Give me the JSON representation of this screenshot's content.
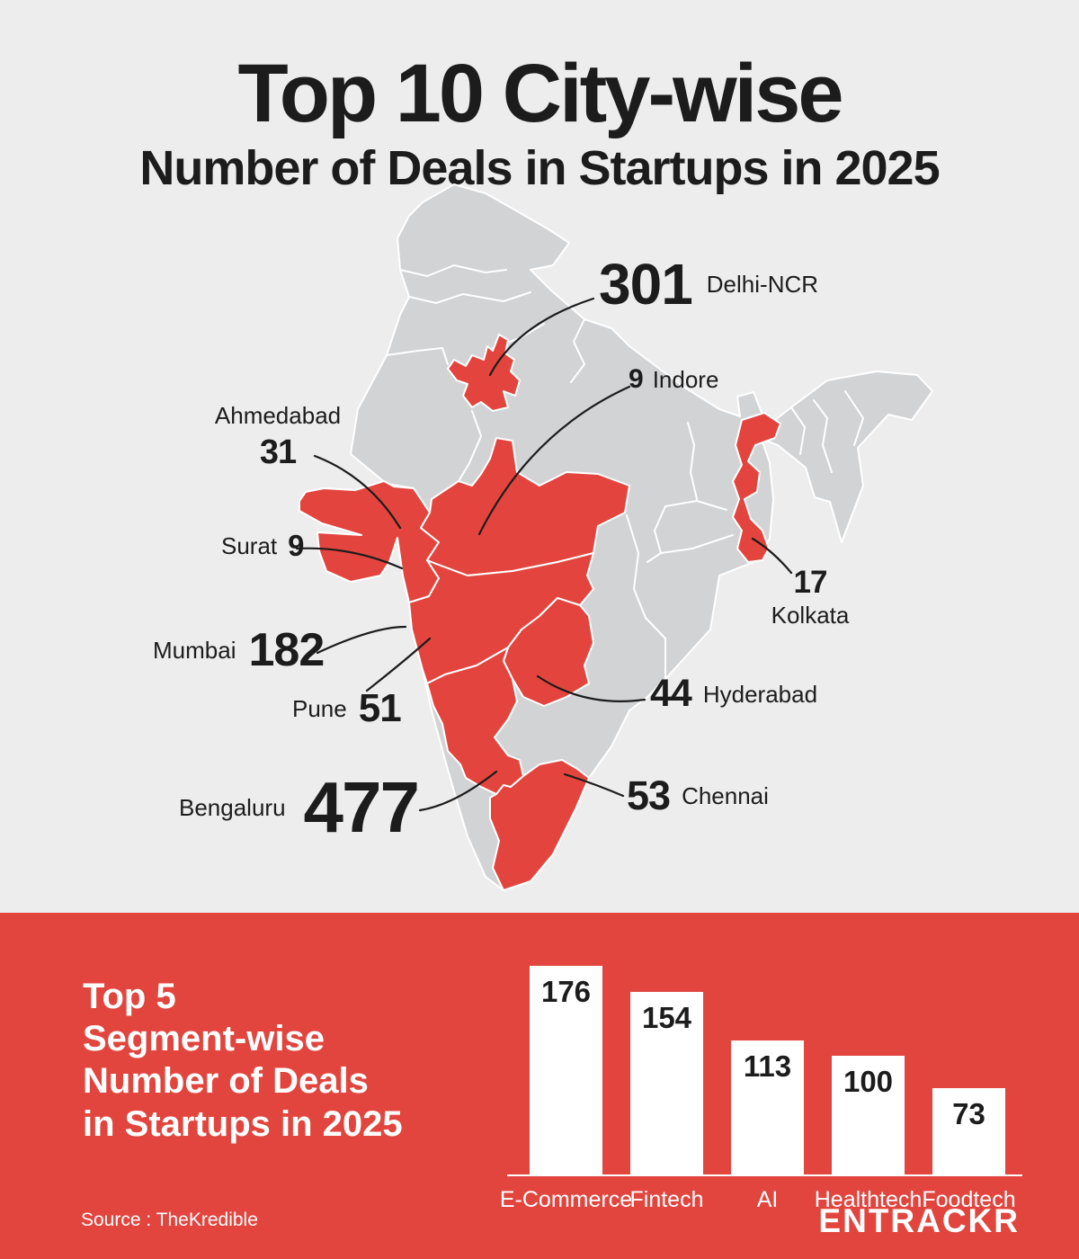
{
  "title": {
    "line1": "Top 10 City-wise",
    "line2": "Number of Deals in Startups in 2025"
  },
  "map": {
    "callouts": {
      "delhi": {
        "value": "301",
        "label": "Delhi-NCR"
      },
      "indore": {
        "value": "9",
        "label": "Indore"
      },
      "ahmedabad": {
        "value": "31",
        "label": "Ahmedabad"
      },
      "surat": {
        "value": "9",
        "label": "Surat"
      },
      "mumbai": {
        "value": "182",
        "label": "Mumbai"
      },
      "pune": {
        "value": "51",
        "label": "Pune"
      },
      "bengaluru": {
        "value": "477",
        "label": "Bengaluru"
      },
      "kolkata": {
        "value": "17",
        "label": "Kolkata"
      },
      "hyderabad": {
        "value": "44",
        "label": "Hyderabad"
      },
      "chennai": {
        "value": "53",
        "label": "Chennai"
      }
    }
  },
  "chart_data": {
    "type": "bar",
    "categories": [
      "E-Commerce",
      "Fintech",
      "AI",
      "Healthtech",
      "Foodtech"
    ],
    "values": [
      176,
      154,
      113,
      100,
      73
    ],
    "title": "Top 5 Segment-wise Number of Deals in Startups in 2025",
    "xlabel": "",
    "ylabel": "",
    "ylim": [
      0,
      185
    ],
    "grid": false,
    "legend": false,
    "bar_color": "#FFFFFF",
    "value_label_color": "#1C1C1C"
  },
  "band": {
    "heading_lines": [
      "Top 5",
      "Segment-wise",
      "Number of Deals",
      "in Startups in 2025"
    ],
    "source": "Source : TheKredible",
    "logo": "ENTRACKR"
  },
  "colors": {
    "background": "#EDEDED",
    "section_red": "#E2453E",
    "state_red": "#E3453E",
    "state_gray": "#D2D3D5",
    "map_border": "#FFFFFF",
    "text_dark": "#1C1C1C",
    "text_white": "#FFFFFF",
    "connector": "#1C1C1C"
  }
}
